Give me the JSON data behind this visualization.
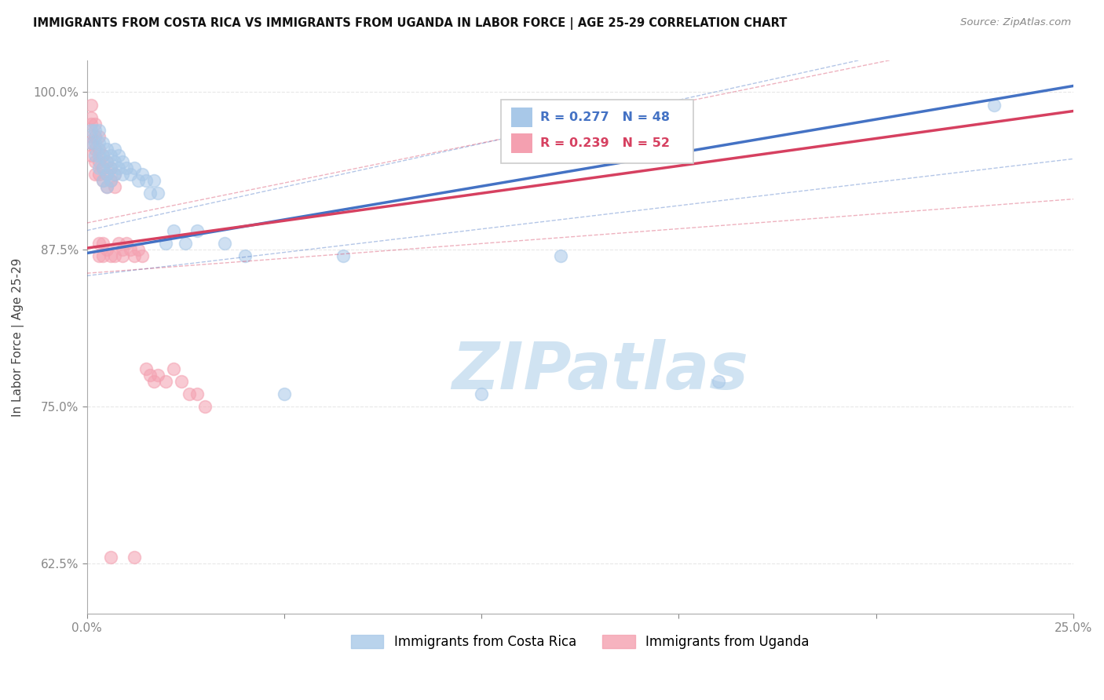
{
  "title": "IMMIGRANTS FROM COSTA RICA VS IMMIGRANTS FROM UGANDA IN LABOR FORCE | AGE 25-29 CORRELATION CHART",
  "source": "Source: ZipAtlas.com",
  "ylabel": "In Labor Force | Age 25-29",
  "legend_entries": [
    {
      "label": "Immigrants from Costa Rica",
      "color": "#a8c8e8"
    },
    {
      "label": "Immigrants from Uganda",
      "color": "#f4a0b0"
    }
  ],
  "legend_r_n": [
    {
      "R": "0.277",
      "N": "48",
      "color": "#4472c4"
    },
    {
      "R": "0.239",
      "N": "52",
      "color": "#e05070"
    }
  ],
  "xlim": [
    0.0,
    0.25
  ],
  "ylim": [
    0.585,
    1.025
  ],
  "yticks": [
    0.625,
    0.75,
    0.875,
    1.0
  ],
  "ytick_labels": [
    "62.5%",
    "75.0%",
    "87.5%",
    "100.0%"
  ],
  "xticks": [
    0.0,
    0.05,
    0.1,
    0.15,
    0.2,
    0.25
  ],
  "xtick_labels": [
    "0.0%",
    "",
    "",
    "",
    "",
    "25.0%"
  ],
  "background_color": "#ffffff",
  "grid_color": "#e8e8e8",
  "costa_rica_color": "#a8c8e8",
  "uganda_color": "#f4a0b0",
  "trend_costa_rica_color": "#4472c4",
  "trend_uganda_color": "#d64060",
  "costa_rica_scatter": [
    [
      0.001,
      0.97
    ],
    [
      0.001,
      0.96
    ],
    [
      0.002,
      0.97
    ],
    [
      0.002,
      0.96
    ],
    [
      0.002,
      0.95
    ],
    [
      0.003,
      0.97
    ],
    [
      0.003,
      0.96
    ],
    [
      0.003,
      0.95
    ],
    [
      0.003,
      0.94
    ],
    [
      0.004,
      0.96
    ],
    [
      0.004,
      0.95
    ],
    [
      0.004,
      0.94
    ],
    [
      0.004,
      0.93
    ],
    [
      0.005,
      0.955
    ],
    [
      0.005,
      0.945
    ],
    [
      0.005,
      0.935
    ],
    [
      0.005,
      0.925
    ],
    [
      0.006,
      0.95
    ],
    [
      0.006,
      0.94
    ],
    [
      0.006,
      0.93
    ],
    [
      0.007,
      0.955
    ],
    [
      0.007,
      0.945
    ],
    [
      0.007,
      0.935
    ],
    [
      0.008,
      0.95
    ],
    [
      0.008,
      0.94
    ],
    [
      0.009,
      0.945
    ],
    [
      0.009,
      0.935
    ],
    [
      0.01,
      0.94
    ],
    [
      0.011,
      0.935
    ],
    [
      0.012,
      0.94
    ],
    [
      0.013,
      0.93
    ],
    [
      0.014,
      0.935
    ],
    [
      0.015,
      0.93
    ],
    [
      0.016,
      0.92
    ],
    [
      0.017,
      0.93
    ],
    [
      0.018,
      0.92
    ],
    [
      0.02,
      0.88
    ],
    [
      0.022,
      0.89
    ],
    [
      0.025,
      0.88
    ],
    [
      0.028,
      0.89
    ],
    [
      0.035,
      0.88
    ],
    [
      0.04,
      0.87
    ],
    [
      0.05,
      0.76
    ],
    [
      0.065,
      0.87
    ],
    [
      0.1,
      0.76
    ],
    [
      0.12,
      0.87
    ],
    [
      0.16,
      0.77
    ],
    [
      0.23,
      0.99
    ]
  ],
  "uganda_scatter": [
    [
      0.001,
      0.99
    ],
    [
      0.001,
      0.98
    ],
    [
      0.001,
      0.975
    ],
    [
      0.001,
      0.965
    ],
    [
      0.001,
      0.96
    ],
    [
      0.001,
      0.95
    ],
    [
      0.002,
      0.975
    ],
    [
      0.002,
      0.965
    ],
    [
      0.002,
      0.955
    ],
    [
      0.002,
      0.945
    ],
    [
      0.002,
      0.935
    ],
    [
      0.003,
      0.965
    ],
    [
      0.003,
      0.955
    ],
    [
      0.003,
      0.945
    ],
    [
      0.003,
      0.935
    ],
    [
      0.003,
      0.88
    ],
    [
      0.003,
      0.87
    ],
    [
      0.004,
      0.95
    ],
    [
      0.004,
      0.94
    ],
    [
      0.004,
      0.93
    ],
    [
      0.004,
      0.88
    ],
    [
      0.004,
      0.87
    ],
    [
      0.005,
      0.945
    ],
    [
      0.005,
      0.935
    ],
    [
      0.005,
      0.925
    ],
    [
      0.005,
      0.875
    ],
    [
      0.006,
      0.94
    ],
    [
      0.006,
      0.93
    ],
    [
      0.006,
      0.87
    ],
    [
      0.007,
      0.935
    ],
    [
      0.007,
      0.925
    ],
    [
      0.007,
      0.87
    ],
    [
      0.008,
      0.88
    ],
    [
      0.009,
      0.875
    ],
    [
      0.009,
      0.87
    ],
    [
      0.01,
      0.88
    ],
    [
      0.011,
      0.875
    ],
    [
      0.012,
      0.87
    ],
    [
      0.013,
      0.875
    ],
    [
      0.014,
      0.87
    ],
    [
      0.015,
      0.78
    ],
    [
      0.016,
      0.775
    ],
    [
      0.017,
      0.77
    ],
    [
      0.018,
      0.775
    ],
    [
      0.02,
      0.77
    ],
    [
      0.022,
      0.78
    ],
    [
      0.024,
      0.77
    ],
    [
      0.026,
      0.76
    ],
    [
      0.028,
      0.76
    ],
    [
      0.03,
      0.75
    ],
    [
      0.006,
      0.63
    ],
    [
      0.012,
      0.63
    ]
  ],
  "watermark_text": "ZIPatlas",
  "watermark_color": "#c8dff0",
  "watermark_fontsize": 60
}
